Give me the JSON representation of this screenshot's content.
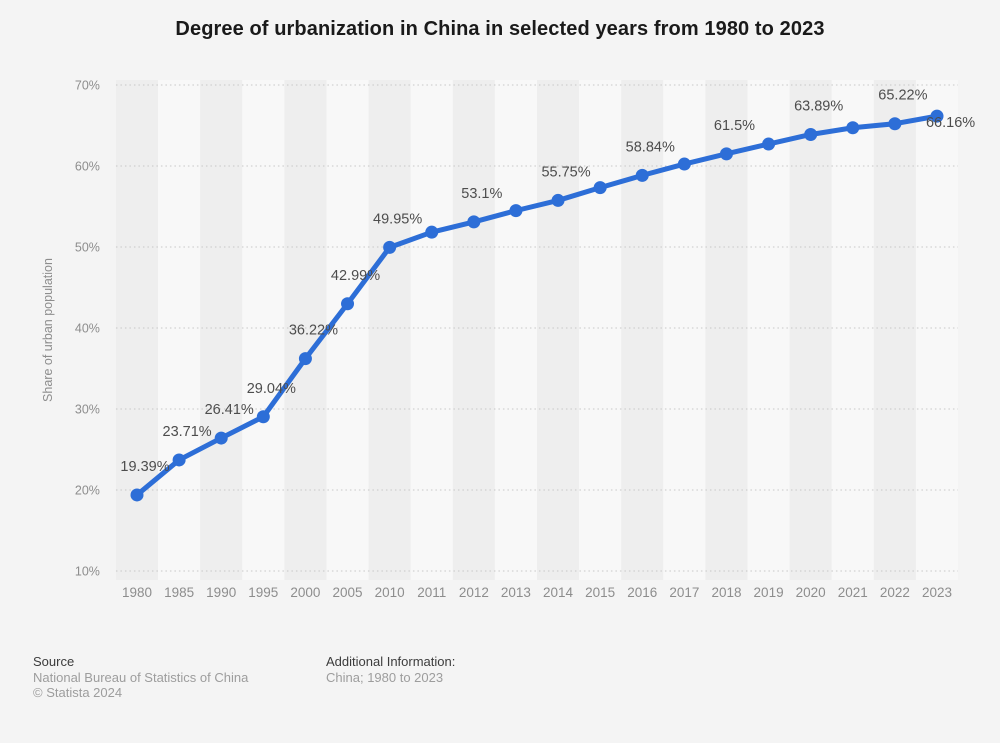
{
  "title": "Degree of urbanization in China in selected years from 1980 to 2023",
  "chart_data": {
    "type": "line",
    "title": "Degree of urbanization in China in selected years from 1980 to 2023",
    "categories": [
      "1980",
      "1985",
      "1990",
      "1995",
      "2000",
      "2005",
      "2010",
      "2011",
      "2012",
      "2013",
      "2014",
      "2015",
      "2016",
      "2017",
      "2018",
      "2019",
      "2020",
      "2021",
      "2022",
      "2023"
    ],
    "series": [
      {
        "name": "share-of-urban-population",
        "values": [
          19.39,
          23.71,
          26.41,
          29.04,
          36.22,
          42.99,
          49.95,
          51.83,
          53.1,
          54.49,
          55.75,
          57.33,
          58.84,
          60.24,
          61.5,
          62.71,
          63.89,
          64.72,
          65.22,
          66.16
        ]
      }
    ],
    "point_labels": [
      "19.39%",
      "23.71%",
      "26.41%",
      "29.04%",
      "36.22%",
      "42.99%",
      "49.95%",
      null,
      "53.1%",
      null,
      "55.75%",
      null,
      "58.84%",
      null,
      "61.5%",
      null,
      "63.89%",
      null,
      "65.22%",
      "66.16%"
    ],
    "xlabel": "",
    "ylabel": "Share of urban population",
    "ylim": [
      10,
      70
    ],
    "y_ticks": [
      {
        "value": 70,
        "label": "70%"
      },
      {
        "value": 60,
        "label": "60%"
      },
      {
        "value": 50,
        "label": "50%"
      },
      {
        "value": 40,
        "label": "40%"
      },
      {
        "value": 30,
        "label": "30%"
      },
      {
        "value": 20,
        "label": "20%"
      },
      {
        "value": 10,
        "label": "10%"
      }
    ],
    "grid": "horizontal-dotted",
    "legend_position": "none",
    "colors": {
      "line": "#2d6ed7",
      "background": "#f4f4f4",
      "band_dark": "#eeeeee",
      "band_light": "#f8f8f8",
      "gridline": "#c7c7c7",
      "data_label": "#4d4d4d",
      "tick_label": "#8d8d8d"
    }
  },
  "footer": {
    "source_heading": "Source",
    "source_name": "National Bureau of Statistics of China",
    "copyright": "© Statista 2024",
    "additional_heading": "Additional Information:",
    "additional_value": "China; 1980 to 2023"
  }
}
